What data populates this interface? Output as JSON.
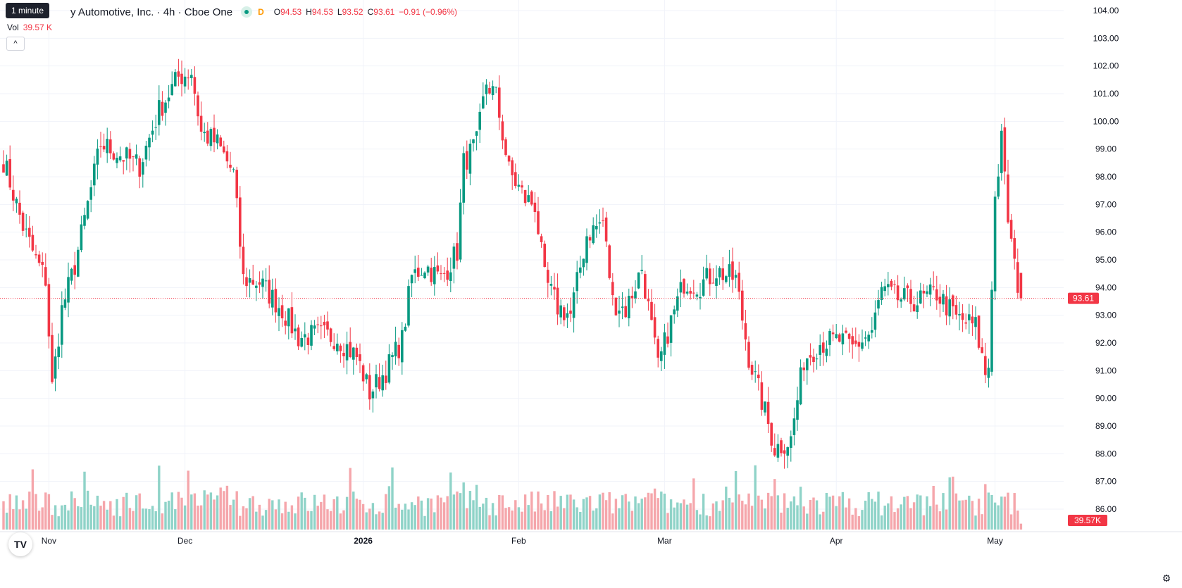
{
  "header": {
    "interval_badge": "1 minute",
    "symbol_title": "y Automotive, Inc. · 4h · Cboe One",
    "d_flag": "D",
    "ohlc": {
      "o_label": "O",
      "o_value": "94.53",
      "h_label": "H",
      "h_value": "94.53",
      "l_label": "L",
      "l_value": "93.52",
      "c_label": "C",
      "c_value": "93.61",
      "change": "−0.91 (−0.96%)"
    },
    "vol_label": "Vol",
    "vol_value": "39.57 K",
    "collapse_icon": "^"
  },
  "colors": {
    "up": "#089981",
    "down": "#f23645",
    "up_volume": "#8fd3c8",
    "down_volume": "#f5a6ab",
    "grid": "#f0f3fa",
    "last_price_line": "#f23645"
  },
  "chart_data": {
    "type": "candlestick",
    "y_range": [
      85.5,
      104.3
    ],
    "y_ticks": [
      "104.00",
      "103.00",
      "102.00",
      "101.00",
      "100.00",
      "99.00",
      "98.00",
      "97.00",
      "96.00",
      "95.00",
      "94.00",
      "93.00",
      "92.00",
      "91.00",
      "90.00",
      "89.00",
      "88.00",
      "87.00",
      "86.00"
    ],
    "x_ticks": [
      {
        "label": "Nov",
        "index": 14
      },
      {
        "label": "Dec",
        "index": 56
      },
      {
        "label": "2026",
        "index": 111
      },
      {
        "label": "Feb",
        "index": 159
      },
      {
        "label": "Mar",
        "index": 204
      },
      {
        "label": "Apr",
        "index": 257
      },
      {
        "label": "May",
        "index": 306
      }
    ],
    "last_price_label": "93.61",
    "last_volume_label": "39.57K",
    "anchors": [
      [
        0,
        98.6
      ],
      [
        3,
        97.4
      ],
      [
        6,
        96.2
      ],
      [
        10,
        95.0
      ],
      [
        13,
        94.3
      ],
      [
        15,
        90.4
      ],
      [
        18,
        93.2
      ],
      [
        22,
        94.8
      ],
      [
        26,
        97.0
      ],
      [
        30,
        99.2
      ],
      [
        36,
        98.8
      ],
      [
        42,
        98.4
      ],
      [
        48,
        100.4
      ],
      [
        54,
        101.6
      ],
      [
        58,
        101.8
      ],
      [
        61,
        99.6
      ],
      [
        66,
        99.2
      ],
      [
        71,
        98.1
      ],
      [
        74,
        94.3
      ],
      [
        79,
        94.2
      ],
      [
        86,
        93.2
      ],
      [
        91,
        92.2
      ],
      [
        97,
        92.3
      ],
      [
        103,
        92.2
      ],
      [
        109,
        91.5
      ],
      [
        113,
        90.2
      ],
      [
        118,
        91.0
      ],
      [
        123,
        92.1
      ],
      [
        126,
        94.4
      ],
      [
        130,
        94.8
      ],
      [
        135,
        94.3
      ],
      [
        140,
        95.3
      ],
      [
        142,
        98.5
      ],
      [
        146,
        99.2
      ],
      [
        149,
        101.4
      ],
      [
        152,
        100.9
      ],
      [
        156,
        98.2
      ],
      [
        161,
        97.2
      ],
      [
        164,
        97.0
      ],
      [
        167,
        94.3
      ],
      [
        171,
        93.3
      ],
      [
        175,
        93.0
      ],
      [
        180,
        95.9
      ],
      [
        185,
        96.4
      ],
      [
        188,
        93.5
      ],
      [
        192,
        93.2
      ],
      [
        197,
        94.7
      ],
      [
        202,
        91.1
      ],
      [
        205,
        92.4
      ],
      [
        210,
        94.2
      ],
      [
        215,
        94.1
      ],
      [
        220,
        94.6
      ],
      [
        226,
        94.3
      ],
      [
        230,
        91.5
      ],
      [
        235,
        89.5
      ],
      [
        238,
        88.2
      ],
      [
        243,
        88.5
      ],
      [
        247,
        91.4
      ],
      [
        252,
        92.0
      ],
      [
        258,
        92.1
      ],
      [
        262,
        91.8
      ],
      [
        268,
        92.4
      ],
      [
        271,
        93.9
      ],
      [
        276,
        93.6
      ],
      [
        282,
        93.5
      ],
      [
        288,
        93.8
      ],
      [
        294,
        92.9
      ],
      [
        300,
        92.6
      ],
      [
        303,
        90.9
      ],
      [
        304,
        91.2
      ],
      [
        306,
        97.2
      ],
      [
        308,
        99.3
      ],
      [
        310,
        96.5
      ],
      [
        312,
        94.7
      ],
      [
        314,
        93.61
      ]
    ],
    "candle_count": 315
  },
  "icons": {
    "tradingview_logo": "TV",
    "settings": "⚙"
  }
}
